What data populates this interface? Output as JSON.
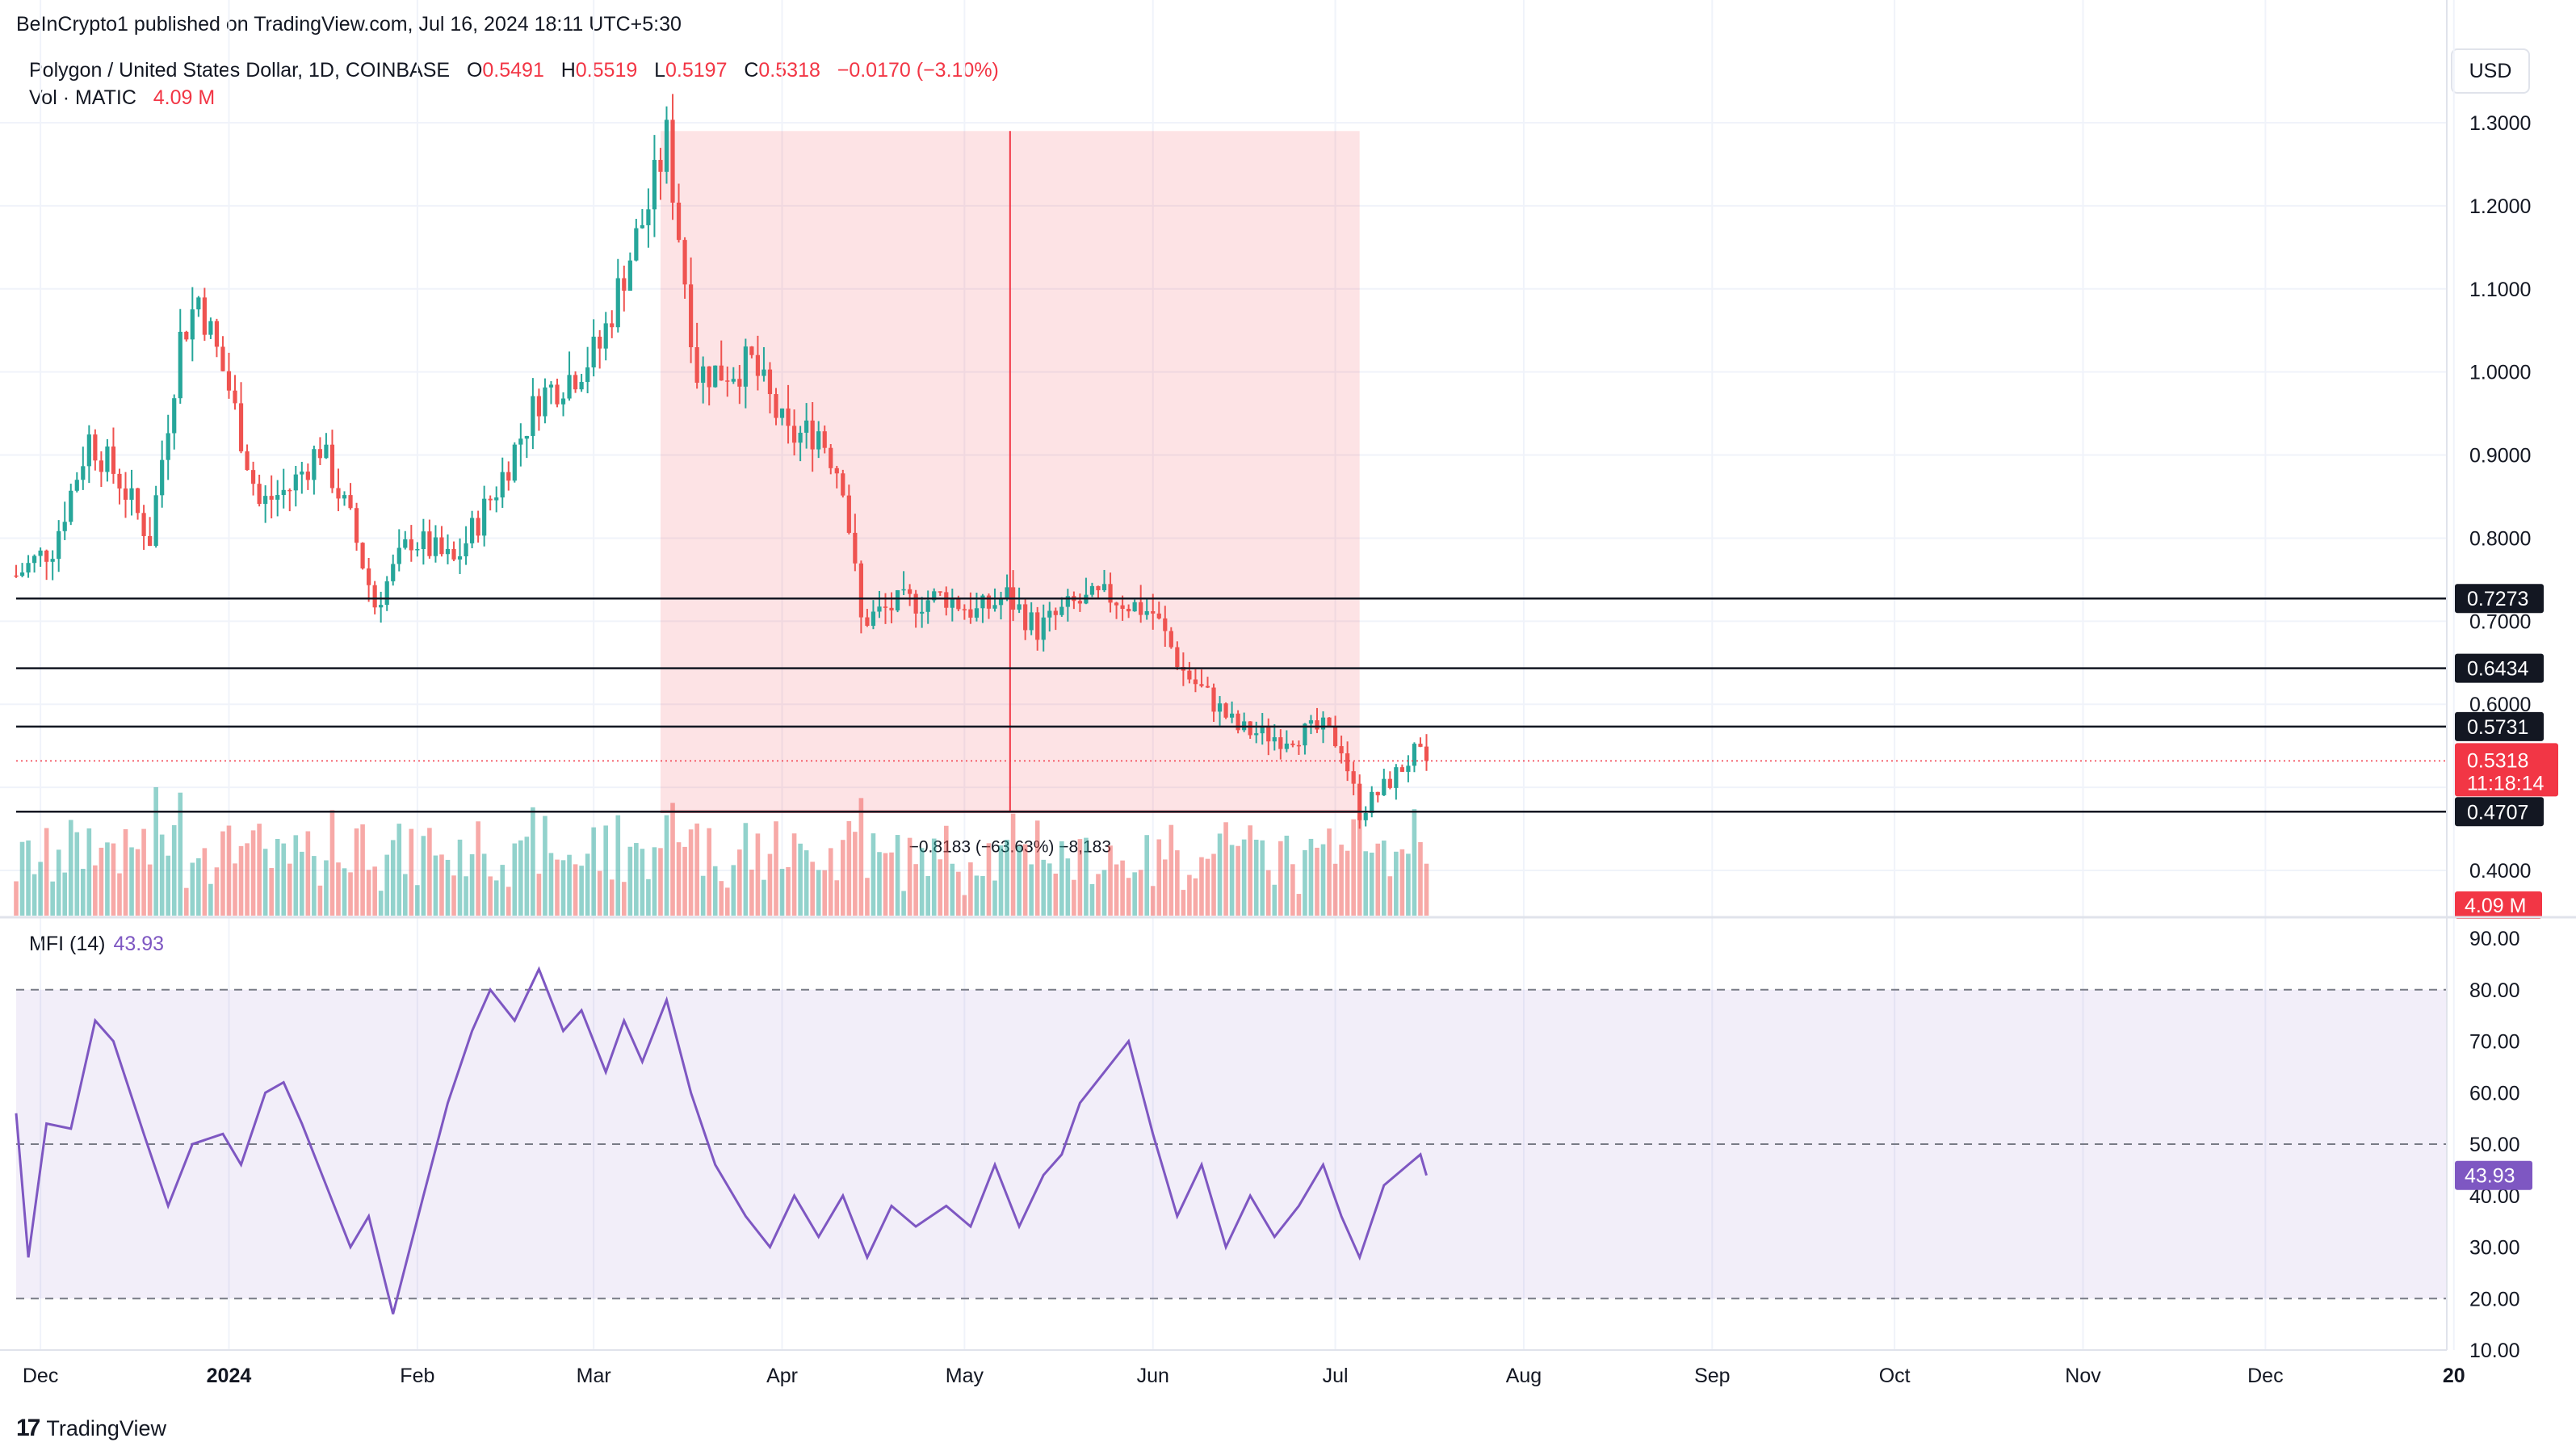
{
  "publisher": "BeInCrypto1 published on TradingView.com, Jul 16, 2024 18:11 UTC+5:30",
  "legend": {
    "symbol": "Polygon / United States Dollar, 1D, COINBASE",
    "open_label": "O",
    "open": "0.5491",
    "high_label": "H",
    "high": "0.5519",
    "low_label": "L",
    "low": "0.5197",
    "close_label": "C",
    "close": "0.5318",
    "change": "−0.0170 (−3.10%)",
    "volume_label": "Vol · MATIC",
    "volume": "4.09 M"
  },
  "currency": "USD",
  "footer": {
    "logo": "17",
    "brand": "TradingView"
  },
  "chart_data": [
    {
      "type": "candlestick",
      "title": "Polygon / United States Dollar, 1D, COINBASE",
      "x_axis": {
        "ticks": [
          "Dec",
          "2024",
          "Feb",
          "Mar",
          "Apr",
          "May",
          "Jun",
          "Jul",
          "Aug",
          "Sep",
          "Oct",
          "Nov",
          "Dec",
          "20"
        ]
      },
      "y_axis": {
        "ticks": [
          "1.3000",
          "1.2000",
          "1.1000",
          "1.0000",
          "0.9000",
          "0.8000",
          "0.7000",
          "0.6000",
          "0.5000",
          "0.4000"
        ],
        "range": [
          0.345,
          1.355
        ]
      },
      "levels": [
        "0.7273",
        "0.6434",
        "0.5731",
        "0.4707"
      ],
      "last_price": "0.5318",
      "countdown": "11:18:14",
      "volume_badge": "4.09 M",
      "measure_label": "−0.8183 (−63.63%) −8,183",
      "measure": {
        "from_price": 1.29,
        "to_price": 0.4707,
        "from_date": "2024-03-12",
        "to_date": "2024-07-05"
      },
      "price_path": [
        [
          "2023-11-27",
          0.755
        ],
        [
          "2023-12-03",
          0.79
        ],
        [
          "2023-12-09",
          0.92
        ],
        [
          "2023-12-14",
          0.87
        ],
        [
          "2023-12-19",
          0.8
        ],
        [
          "2023-12-24",
          1.04
        ],
        [
          "2023-12-27",
          1.09
        ],
        [
          "2024-01-01",
          0.98
        ],
        [
          "2024-01-06",
          0.84
        ],
        [
          "2024-01-11",
          0.86
        ],
        [
          "2024-01-16",
          0.91
        ],
        [
          "2024-01-21",
          0.82
        ],
        [
          "2024-01-25",
          0.72
        ],
        [
          "2024-01-31",
          0.8
        ],
        [
          "2024-02-07",
          0.77
        ],
        [
          "2024-02-14",
          0.86
        ],
        [
          "2024-02-21",
          0.97
        ],
        [
          "2024-02-27",
          1.0
        ],
        [
          "2024-03-02",
          1.03
        ],
        [
          "2024-03-06",
          1.12
        ],
        [
          "2024-03-10",
          1.2
        ],
        [
          "2024-03-13",
          1.28
        ],
        [
          "2024-03-18",
          1.0
        ],
        [
          "2024-03-22",
          1.0
        ],
        [
          "2024-03-27",
          1.01
        ],
        [
          "2024-04-02",
          0.92
        ],
        [
          "2024-04-07",
          0.93
        ],
        [
          "2024-04-11",
          0.87
        ],
        [
          "2024-04-14",
          0.7
        ],
        [
          "2024-04-20",
          0.72
        ],
        [
          "2024-04-28",
          0.73
        ],
        [
          "2024-05-03",
          0.71
        ],
        [
          "2024-05-08",
          0.73
        ],
        [
          "2024-05-13",
          0.69
        ],
        [
          "2024-05-19",
          0.72
        ],
        [
          "2024-05-25",
          0.73
        ],
        [
          "2024-06-01",
          0.71
        ],
        [
          "2024-06-06",
          0.64
        ],
        [
          "2024-06-10",
          0.61
        ],
        [
          "2024-06-15",
          0.57
        ],
        [
          "2024-06-22",
          0.56
        ],
        [
          "2024-06-29",
          0.57
        ],
        [
          "2024-07-02",
          0.55
        ],
        [
          "2024-07-05",
          0.47
        ],
        [
          "2024-07-09",
          0.5
        ],
        [
          "2024-07-14",
          0.54
        ],
        [
          "2024-07-16",
          0.5318
        ]
      ]
    },
    {
      "type": "line",
      "series": [
        {
          "name": "MFI (14)"
        }
      ],
      "current_value": "43.93",
      "y_axis": {
        "ticks": [
          "90.00",
          "80.00",
          "70.00",
          "60.00",
          "50.00",
          "40.00",
          "30.00",
          "20.00",
          "10.00"
        ],
        "range": [
          10,
          90
        ]
      },
      "bands": {
        "upper": 80,
        "middle": 50,
        "lower": 20
      },
      "values": [
        [
          "2023-11-27",
          56
        ],
        [
          "2023-11-29",
          28
        ],
        [
          "2023-12-02",
          54
        ],
        [
          "2023-12-06",
          53
        ],
        [
          "2023-12-10",
          74
        ],
        [
          "2023-12-13",
          70
        ],
        [
          "2023-12-18",
          52
        ],
        [
          "2023-12-22",
          38
        ],
        [
          "2023-12-26",
          50
        ],
        [
          "2023-12-31",
          52
        ],
        [
          "2024-01-03",
          46
        ],
        [
          "2024-01-07",
          60
        ],
        [
          "2024-01-10",
          62
        ],
        [
          "2024-01-13",
          54
        ],
        [
          "2024-01-17",
          42
        ],
        [
          "2024-01-21",
          30
        ],
        [
          "2024-01-24",
          36
        ],
        [
          "2024-01-28",
          17
        ],
        [
          "2024-02-02",
          40
        ],
        [
          "2024-02-06",
          58
        ],
        [
          "2024-02-10",
          72
        ],
        [
          "2024-02-13",
          80
        ],
        [
          "2024-02-17",
          74
        ],
        [
          "2024-02-21",
          84
        ],
        [
          "2024-02-25",
          72
        ],
        [
          "2024-02-28",
          76
        ],
        [
          "2024-03-03",
          64
        ],
        [
          "2024-03-06",
          74
        ],
        [
          "2024-03-09",
          66
        ],
        [
          "2024-03-13",
          78
        ],
        [
          "2024-03-17",
          60
        ],
        [
          "2024-03-21",
          46
        ],
        [
          "2024-03-26",
          36
        ],
        [
          "2024-03-30",
          30
        ],
        [
          "2024-04-03",
          40
        ],
        [
          "2024-04-07",
          32
        ],
        [
          "2024-04-11",
          40
        ],
        [
          "2024-04-15",
          28
        ],
        [
          "2024-04-19",
          38
        ],
        [
          "2024-04-23",
          34
        ],
        [
          "2024-04-28",
          38
        ],
        [
          "2024-05-02",
          34
        ],
        [
          "2024-05-06",
          46
        ],
        [
          "2024-05-10",
          34
        ],
        [
          "2024-05-14",
          44
        ],
        [
          "2024-05-17",
          48
        ],
        [
          "2024-05-20",
          58
        ],
        [
          "2024-05-24",
          64
        ],
        [
          "2024-05-28",
          70
        ],
        [
          "2024-06-01",
          52
        ],
        [
          "2024-06-05",
          36
        ],
        [
          "2024-06-09",
          46
        ],
        [
          "2024-06-13",
          30
        ],
        [
          "2024-06-17",
          40
        ],
        [
          "2024-06-21",
          32
        ],
        [
          "2024-06-25",
          38
        ],
        [
          "2024-06-29",
          46
        ],
        [
          "2024-07-02",
          36
        ],
        [
          "2024-07-05",
          28
        ],
        [
          "2024-07-09",
          42
        ],
        [
          "2024-07-13",
          46
        ],
        [
          "2024-07-15",
          48
        ],
        [
          "2024-07-16",
          43.93
        ]
      ]
    }
  ]
}
